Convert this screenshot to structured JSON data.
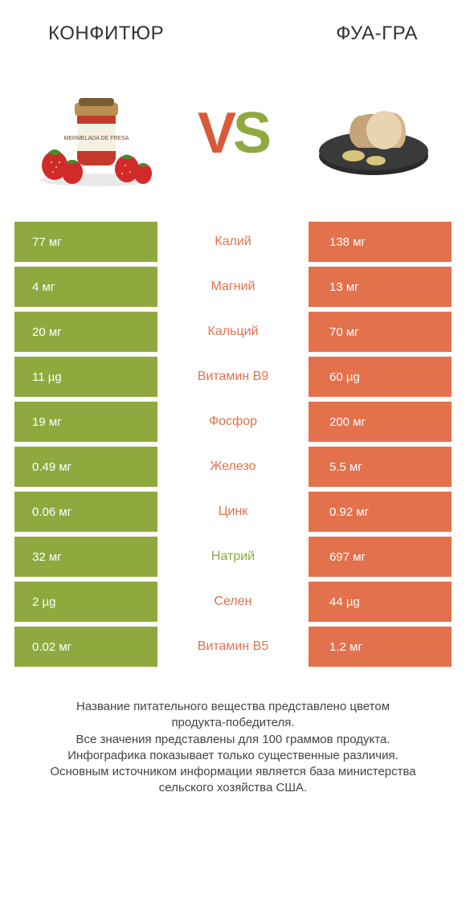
{
  "colors": {
    "left_bar": "#8fa93f",
    "right_bar": "#e2714c",
    "text_white": "#ffffff",
    "header_text": "#333333",
    "footer_text": "#444444",
    "background": "#ffffff"
  },
  "header": {
    "left_title": "КОНФИТЮР",
    "right_title": "ФУА-ГРА"
  },
  "vs": {
    "v": "V",
    "s": "S"
  },
  "typography": {
    "header_fontsize": 24,
    "vs_fontsize": 72,
    "cell_fontsize": 15,
    "nutrient_fontsize": 16,
    "footer_fontsize": 15
  },
  "rows": [
    {
      "left": "77 мг",
      "name": "Калий",
      "right": "138 мг",
      "winner": "right"
    },
    {
      "left": "4 мг",
      "name": "Магний",
      "right": "13 мг",
      "winner": "right"
    },
    {
      "left": "20 мг",
      "name": "Кальций",
      "right": "70 мг",
      "winner": "right"
    },
    {
      "left": "11 µg",
      "name": "Витамин B9",
      "right": "60 µg",
      "winner": "right"
    },
    {
      "left": "19 мг",
      "name": "Фосфор",
      "right": "200 мг",
      "winner": "right"
    },
    {
      "left": "0.49 мг",
      "name": "Железо",
      "right": "5.5 мг",
      "winner": "right"
    },
    {
      "left": "0.06 мг",
      "name": "Цинк",
      "right": "0.92 мг",
      "winner": "right"
    },
    {
      "left": "32 мг",
      "name": "Натрий",
      "right": "697 мг",
      "winner": "left"
    },
    {
      "left": "2 µg",
      "name": "Селен",
      "right": "44 µg",
      "winner": "right"
    },
    {
      "left": "0.02 мг",
      "name": "Витамин B5",
      "right": "1.2 мг",
      "winner": "right"
    }
  ],
  "footer_lines": [
    "Название питательного вещества представлено цветом",
    "продукта-победителя.",
    "Все значения представлены для 100 граммов продукта.",
    "Инфографика показывает только существенные различия.",
    "Основным источником информации является база министерства",
    "сельского хозяйства США."
  ]
}
